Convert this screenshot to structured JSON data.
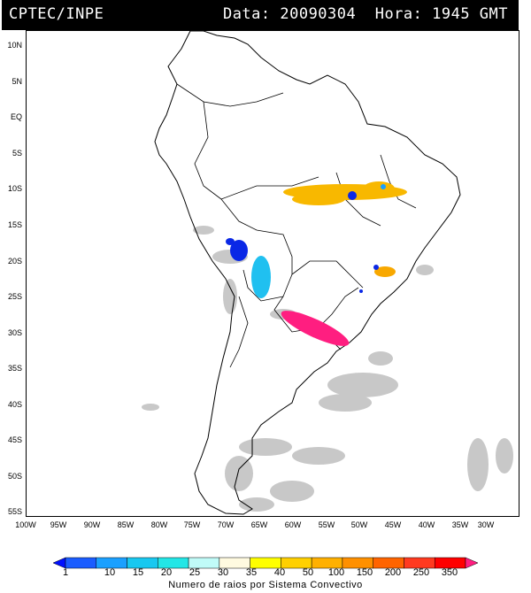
{
  "header": {
    "source": "CPTEC/INPE",
    "datetime": "Data: 20090304  Hora: 1945 GMT"
  },
  "map": {
    "lat_labels": [
      "10N",
      "5N",
      "EQ",
      "5S",
      "10S",
      "15S",
      "20S",
      "25S",
      "30S",
      "35S",
      "40S",
      "45S",
      "50S",
      "55S"
    ],
    "lon_labels": [
      "100W",
      "95W",
      "90W",
      "85W",
      "80W",
      "75W",
      "70W",
      "65W",
      "60W",
      "55W",
      "50W",
      "45W",
      "40W",
      "35W",
      "30W"
    ],
    "lat_range": [
      -56,
      12
    ],
    "lon_range": [
      -100,
      -27
    ],
    "grid": false
  },
  "legend": {
    "title": "Numero de raios por Sistema Convectivo",
    "ticks": [
      "1",
      "10",
      "15",
      "20",
      "25",
      "30",
      "35",
      "40",
      "50",
      "100",
      "150",
      "200",
      "250",
      "350"
    ],
    "colors": [
      "#0010ff",
      "#1a5cff",
      "#1aa0ff",
      "#18c8f0",
      "#22e6e6",
      "#c0fbf8",
      "#fffae0",
      "#ffff00",
      "#ffd000",
      "#ffb000",
      "#ff9000",
      "#ff6400",
      "#ff3a20",
      "#ff0000",
      "#ff1e80"
    ]
  },
  "systems": [
    {
      "color_name": "orange",
      "color": "#f8b800",
      "region": "central Brazil (8-12S, 55-45W)"
    },
    {
      "color_name": "blue",
      "color": "#0a28e6",
      "region": "Bolivia (17-20S, 68-65W)"
    },
    {
      "color_name": "cyan",
      "color": "#20c0f0",
      "region": "Paraguay/Bolivia (20-26S, 64-61W)"
    },
    {
      "color_name": "magenta",
      "color": "#ff1e80",
      "region": "Argentina/Rio Grande do Sul (26-32S, 60-52W)"
    },
    {
      "color_name": "orange",
      "color": "#f8a800",
      "region": "Sao Paulo/Minas (20-23S, 48-45W)"
    }
  ]
}
